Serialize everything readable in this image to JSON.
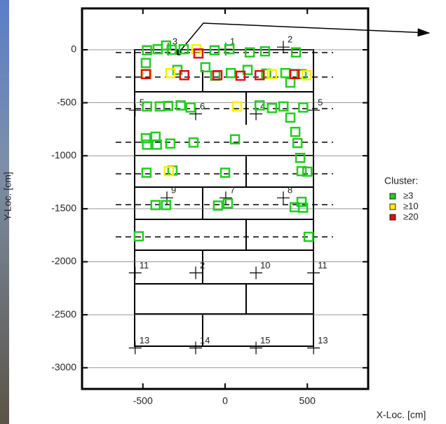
{
  "chart_data": {
    "type": "scatter",
    "xlabel": "X-Loc. [cm]",
    "ylabel": "Y-Loc. [cm]",
    "legend_title": "Cluster:",
    "xlim": [
      -870,
      870
    ],
    "ylim": [
      -3200,
      390
    ],
    "xticks": [
      -500,
      0,
      500
    ],
    "yticks": [
      -3000,
      -2500,
      -2000,
      -1500,
      -1000,
      -500,
      0
    ],
    "grid": true,
    "legend": "right",
    "series": [
      {
        "name": "≥3",
        "color": "#22cc22",
        "x": [
          -475,
          -410,
          -359,
          -325,
          -252,
          -64,
          26,
          150,
          243,
          431,
          -482,
          -290,
          -120,
          -60,
          35,
          137,
          250,
          367,
          397,
          465,
          -475,
          -397,
          -346,
          -270,
          -210,
          210,
          285,
          355,
          475,
          397,
          -482,
          -423,
          -475,
          -415,
          -333,
          -192,
          60,
          427,
          440,
          -478,
          -320,
          0,
          457,
          465,
          500,
          -423,
          -359,
          -43,
          17,
          465,
          423,
          474,
          -525,
          508
        ],
        "values": [
          -5,
          5,
          40,
          0,
          5,
          -5,
          5,
          -25,
          -15,
          -25,
          -125,
          -190,
          -165,
          -245,
          -220,
          -190,
          -225,
          -220,
          -310,
          -230,
          -535,
          -535,
          -530,
          -525,
          -545,
          -525,
          -550,
          -535,
          -545,
          -640,
          -835,
          -820,
          -895,
          -895,
          -885,
          -875,
          -845,
          -775,
          -880,
          -1160,
          -1140,
          -1160,
          -1020,
          -1145,
          -1150,
          -1465,
          -1465,
          -1470,
          -1450,
          -1435,
          -1485,
          -1490,
          -1760,
          -1765
        ]
      },
      {
        "name": "≥10",
        "color": "#ffee00",
        "x": [
          -475,
          -333,
          -175,
          73,
          -342,
          285,
          495
        ],
        "values": [
          -230,
          -220,
          5,
          -535,
          -1145,
          -230,
          -240
        ]
      },
      {
        "name": "≥20",
        "color": "#dd1111",
        "x": [
          -482,
          -248,
          -162,
          -47,
          94,
          210,
          423
        ],
        "values": [
          -230,
          -240,
          -35,
          -240,
          -245,
          -240,
          -230
        ]
      }
    ],
    "sensors": [
      {
        "label": "3",
        "x": -346,
        "y": 5
      },
      {
        "label": "1",
        "x": 4,
        "y": 5
      },
      {
        "label": "2",
        "x": 354,
        "y": 25
      },
      {
        "label": "5",
        "x": -547,
        "y": -570
      },
      {
        "label": "6",
        "x": -179,
        "y": -605
      },
      {
        "label": "4",
        "x": 188,
        "y": -605
      },
      {
        "label": "5",
        "x": 538,
        "y": -570
      },
      {
        "label": "9",
        "x": -354,
        "y": -1397
      },
      {
        "label": "7",
        "x": 4,
        "y": -1397
      },
      {
        "label": "8",
        "x": 354,
        "y": -1397
      },
      {
        "label": "11",
        "x": -547,
        "y": -2105
      },
      {
        "label": "2",
        "x": -179,
        "y": -2105
      },
      {
        "label": "10",
        "x": 188,
        "y": -2105
      },
      {
        "label": "11",
        "x": 538,
        "y": -2105
      },
      {
        "label": "13",
        "x": -547,
        "y": -2813
      },
      {
        "label": "14",
        "x": -179,
        "y": -2813
      },
      {
        "label": "15",
        "x": 188,
        "y": -2813
      },
      {
        "label": "13",
        "x": 538,
        "y": -2813
      }
    ]
  }
}
